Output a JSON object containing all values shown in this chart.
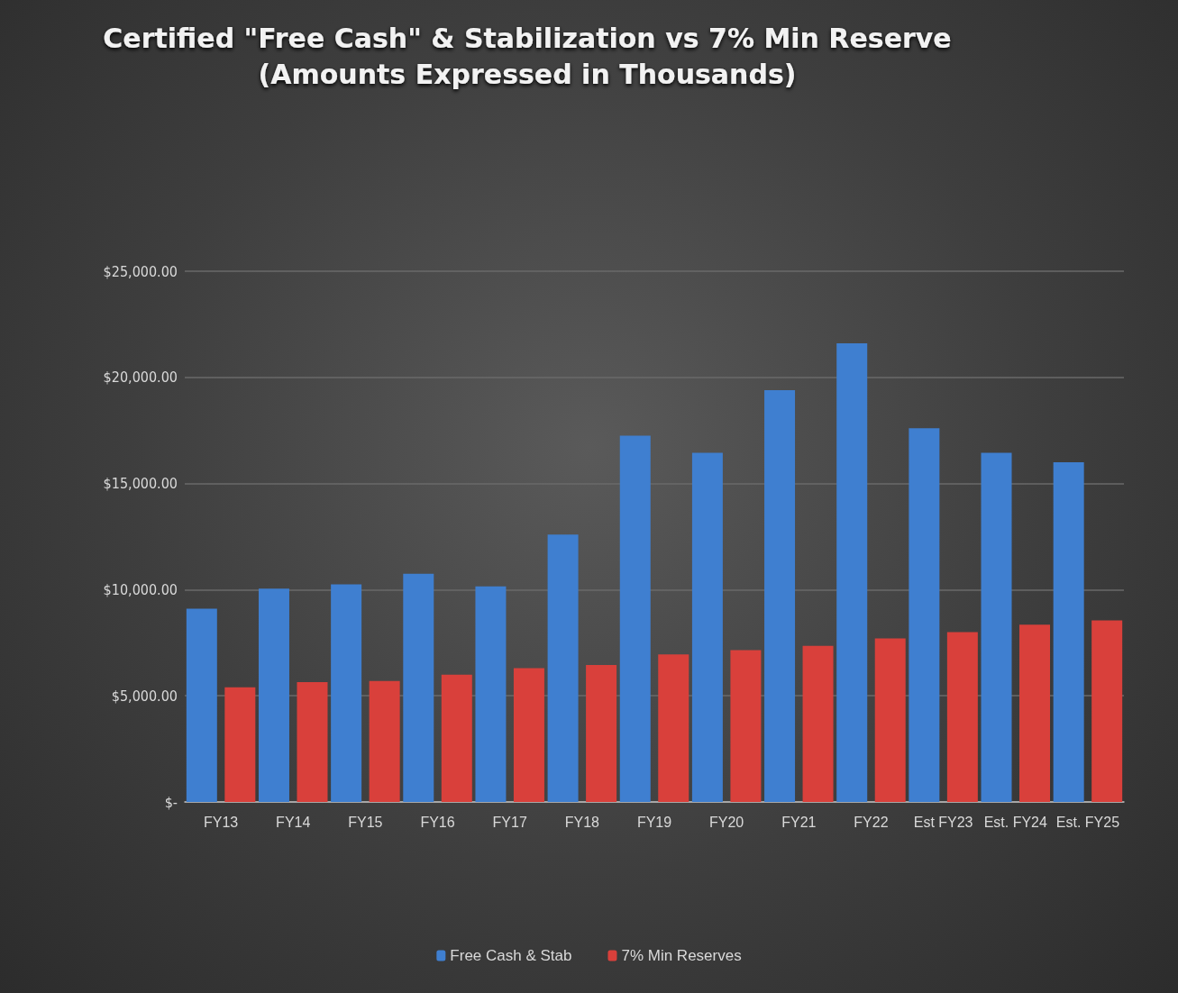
{
  "chart_data": {
    "type": "bar",
    "title": "Certified \"Free Cash\" & Stabilization vs 7% Min Reserve",
    "subtitle": "(Amounts Expressed in Thousands)",
    "categories": [
      "FY13",
      "FY14",
      "FY15",
      "FY16",
      "FY17",
      "FY18",
      "FY19",
      "FY20",
      "FY21",
      "FY22",
      "Est FY23",
      "Est. FY24",
      "Est. FY25"
    ],
    "series": [
      {
        "name": "Free Cash & Stab",
        "color": "#3f7fd0",
        "values": [
          9100,
          10050,
          10250,
          10750,
          10150,
          12600,
          17250,
          16450,
          19400,
          21600,
          17600,
          16450,
          16000
        ]
      },
      {
        "name": "7% Min Reserves",
        "color": "#d9403b",
        "values": [
          5400,
          5650,
          5700,
          6000,
          6300,
          6450,
          6950,
          7150,
          7350,
          7700,
          8000,
          8350,
          8550
        ]
      }
    ],
    "ylim": [
      0,
      25000
    ],
    "yticks": [
      {
        "value": 0,
        "label": "$-"
      },
      {
        "value": 5000,
        "label": "$5,000.00"
      },
      {
        "value": 10000,
        "label": "$10,000.00"
      },
      {
        "value": 15000,
        "label": "$15,000.00"
      },
      {
        "value": 20000,
        "label": "$20,000.00"
      },
      {
        "value": 25000,
        "label": "$25,000.00"
      }
    ],
    "grid": "y",
    "legend": "bottom"
  }
}
